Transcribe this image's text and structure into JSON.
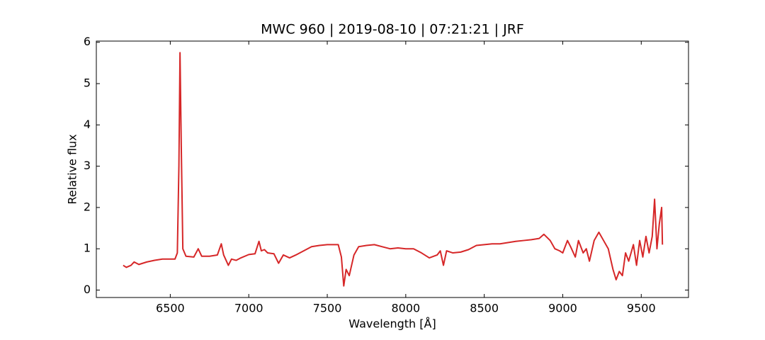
{
  "chart_data": {
    "type": "line",
    "title": "MWC 960 | 2019-08-10 | 07:21:21 | JRF",
    "xlabel": "Wavelength [Å]",
    "ylabel": "Relative flux",
    "x": [
      6200,
      6220,
      6250,
      6270,
      6300,
      6350,
      6400,
      6450,
      6500,
      6530,
      6545,
      6555,
      6562,
      6570,
      6580,
      6600,
      6650,
      6678,
      6700,
      6750,
      6800,
      6825,
      6840,
      6870,
      6890,
      6920,
      6950,
      7000,
      7040,
      7065,
      7080,
      7100,
      7120,
      7160,
      7190,
      7220,
      7260,
      7300,
      7350,
      7400,
      7450,
      7500,
      7570,
      7590,
      7605,
      7620,
      7640,
      7670,
      7700,
      7750,
      7800,
      7850,
      7900,
      7950,
      8000,
      8050,
      8100,
      8150,
      8200,
      8220,
      8240,
      8260,
      8300,
      8350,
      8400,
      8450,
      8500,
      8550,
      8600,
      8650,
      8700,
      8750,
      8800,
      8850,
      8880,
      8920,
      8950,
      8980,
      9000,
      9030,
      9050,
      9080,
      9100,
      9130,
      9150,
      9170,
      9200,
      9230,
      9260,
      9290,
      9320,
      9340,
      9360,
      9380,
      9400,
      9420,
      9450,
      9470,
      9490,
      9510,
      9530,
      9550,
      9570,
      9585,
      9600,
      9615,
      9630,
      9635
    ],
    "series": [
      {
        "name": "flux",
        "color": "#d62728",
        "values": [
          0.6,
          0.55,
          0.6,
          0.68,
          0.62,
          0.68,
          0.72,
          0.75,
          0.75,
          0.75,
          0.9,
          3.0,
          5.75,
          3.5,
          1.0,
          0.82,
          0.8,
          1.0,
          0.82,
          0.82,
          0.85,
          1.12,
          0.85,
          0.6,
          0.75,
          0.72,
          0.78,
          0.86,
          0.88,
          1.18,
          0.95,
          0.98,
          0.9,
          0.88,
          0.65,
          0.85,
          0.78,
          0.85,
          0.95,
          1.05,
          1.08,
          1.1,
          1.1,
          0.8,
          0.1,
          0.5,
          0.35,
          0.85,
          1.05,
          1.08,
          1.1,
          1.05,
          1.0,
          1.02,
          1.0,
          1.0,
          0.9,
          0.78,
          0.85,
          0.95,
          0.6,
          0.95,
          0.9,
          0.92,
          0.98,
          1.08,
          1.1,
          1.12,
          1.12,
          1.15,
          1.18,
          1.2,
          1.22,
          1.25,
          1.35,
          1.2,
          1.0,
          0.95,
          0.9,
          1.2,
          1.05,
          0.8,
          1.2,
          0.9,
          1.0,
          0.7,
          1.2,
          1.4,
          1.2,
          1.0,
          0.5,
          0.25,
          0.45,
          0.35,
          0.9,
          0.7,
          1.1,
          0.6,
          1.2,
          0.8,
          1.3,
          0.9,
          1.3,
          2.2,
          1.0,
          1.6,
          2.0,
          1.1
        ]
      }
    ],
    "xlim": [
      6029,
      9801
    ],
    "ylim": [
      -0.18,
      6.03
    ],
    "xticks": [
      6500,
      7000,
      7500,
      8000,
      8500,
      9000,
      9500
    ],
    "yticks": [
      0,
      1,
      2,
      3,
      4,
      5,
      6
    ]
  }
}
